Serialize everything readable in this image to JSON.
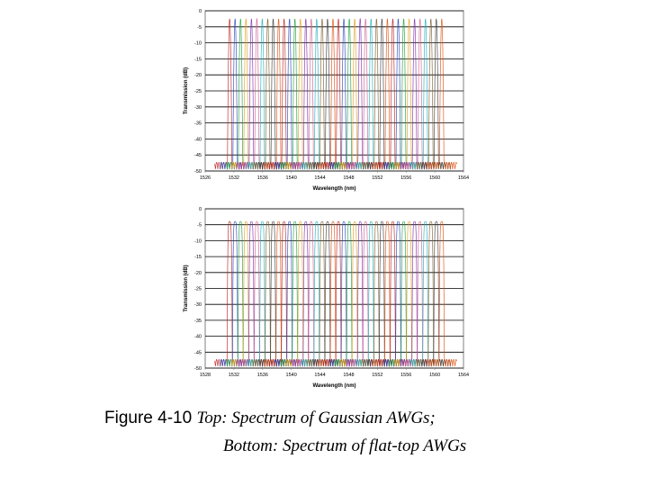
{
  "chart_data": [
    {
      "type": "line",
      "title": "",
      "xlabel": "Wavelength (nm)",
      "ylabel": "Transmission (dB)",
      "xlim": [
        1526,
        1564
      ],
      "ylim": [
        -50,
        0
      ],
      "xticks": [
        "1526",
        "1532",
        "1536",
        "1540",
        "1544",
        "1548",
        "1552",
        "1556",
        "1560",
        "1564"
      ],
      "yticks": [
        "0",
        "-5",
        "-10",
        "-15",
        "-20",
        "-25",
        "-30",
        "-35",
        "-40",
        "-45",
        "-50"
      ],
      "grid": true,
      "channel_shape": "gaussian",
      "channel_count": 40,
      "channel_start_nm": 1529.6,
      "channel_spacing_nm": 0.8,
      "peak_db": -2.5,
      "floor_db": -48,
      "colors": [
        "#c02020",
        "#2848c0",
        "#20a040",
        "#e0a020",
        "#8030b0",
        "#d06090",
        "#20b0c0",
        "#806030",
        "#404040",
        "#e05010"
      ]
    },
    {
      "type": "line",
      "title": "",
      "xlabel": "Wavelength (nm)",
      "ylabel": "Transmission (dB)",
      "xlim": [
        1526,
        1564
      ],
      "ylim": [
        -50,
        0
      ],
      "xticks": [
        "1528",
        "1532",
        "1536",
        "1540",
        "1544",
        "1548",
        "1552",
        "1556",
        "1560",
        "1564"
      ],
      "yticks": [
        "0",
        "-5",
        "-10",
        "-15",
        "-20",
        "-25",
        "-30",
        "-35",
        "-40",
        "-45",
        "-50"
      ],
      "grid": true,
      "channel_shape": "flat-top",
      "channel_count": 40,
      "channel_start_nm": 1529.6,
      "channel_spacing_nm": 0.8,
      "peak_db": -4,
      "floor_db": -48,
      "colors": [
        "#c02020",
        "#2848c0",
        "#20a040",
        "#e0a020",
        "#8030b0",
        "#d06090",
        "#20b0c0",
        "#806030",
        "#404040",
        "#e05010"
      ]
    }
  ],
  "caption": {
    "label": "Figure 4-10",
    "line1": "Top: Spectrum of Gaussian AWGs;",
    "line2": "Bottom: Spectrum of flat-top AWGs"
  }
}
